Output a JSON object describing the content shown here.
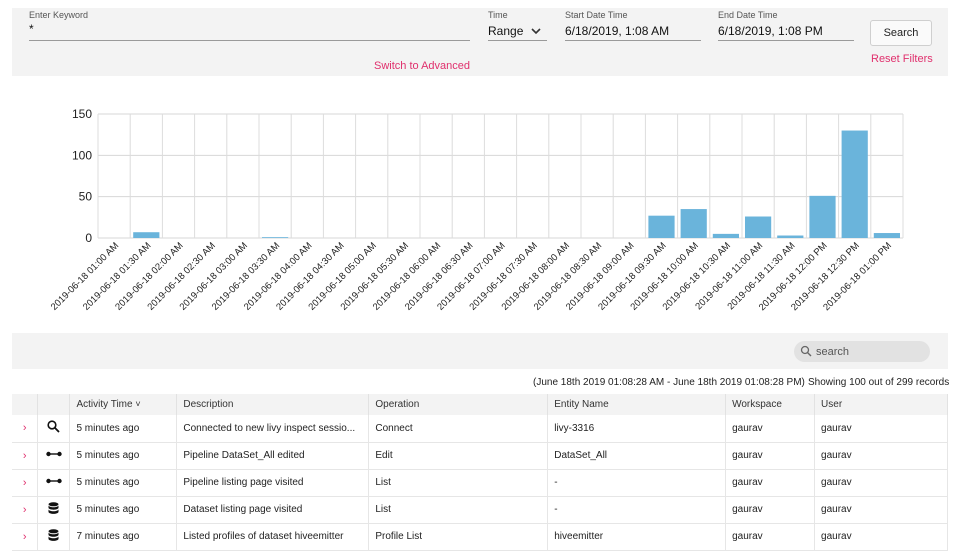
{
  "filters": {
    "keyword_label": "Enter Keyword",
    "keyword_value": "*",
    "time_label": "Time",
    "time_value": "Range",
    "start_label": "Start Date Time",
    "start_value": "6/18/2019, 1:08 AM",
    "end_label": "End Date Time",
    "end_value": "6/18/2019, 1:08 PM",
    "search_button": "Search",
    "reset_link": "Reset Filters",
    "advanced_link": "Switch to Advanced"
  },
  "chart_data": {
    "type": "bar",
    "categories": [
      "2019-06-18 01:00 AM",
      "2019-06-18 01:30 AM",
      "2019-06-18 02:00 AM",
      "2019-06-18 02:30 AM",
      "2019-06-18 03:00 AM",
      "2019-06-18 03:30 AM",
      "2019-06-18 04:00 AM",
      "2019-06-18 04:30 AM",
      "2019-06-18 05:00 AM",
      "2019-06-18 05:30 AM",
      "2019-06-18 06:00 AM",
      "2019-06-18 06:30 AM",
      "2019-06-18 07:00 AM",
      "2019-06-18 07:30 AM",
      "2019-06-18 08:00 AM",
      "2019-06-18 08:30 AM",
      "2019-06-18 09:00 AM",
      "2019-06-18 09:30 AM",
      "2019-06-18 10:00 AM",
      "2019-06-18 10:30 AM",
      "2019-06-18 11:00 AM",
      "2019-06-18 11:30 AM",
      "2019-06-18 12:00 PM",
      "2019-06-18 12:30 PM",
      "2019-06-18 01:00 PM"
    ],
    "values": [
      0,
      7,
      0,
      0,
      0,
      1,
      0,
      0,
      0,
      0,
      0,
      0,
      0,
      0,
      0,
      0,
      0,
      27,
      35,
      5,
      26,
      3,
      51,
      130,
      6
    ],
    "yticks": [
      0,
      50,
      100,
      150
    ],
    "ylim": [
      0,
      150
    ],
    "grid": true,
    "bar_color": "#6ab4db"
  },
  "toolbar": {
    "search_placeholder": "search"
  },
  "records": {
    "range_text": "(June 18th 2019 01:08:28 AM - June 18th 2019 01:08:28 PM)",
    "showing_text": "Showing 100 out of 299 records"
  },
  "table": {
    "headers": [
      "Activity Time",
      "Description",
      "Operation",
      "Entity Name",
      "Workspace",
      "User"
    ],
    "sort_indicator": "˅",
    "rows": [
      {
        "icon": "search",
        "time": "5 minutes ago",
        "desc": "Connected to new livy inspect sessio...",
        "op": "Connect",
        "entity": "livy-3316",
        "ws": "gaurav",
        "user": "gaurav"
      },
      {
        "icon": "pipeline",
        "time": "5 minutes ago",
        "desc": "Pipeline DataSet_All edited",
        "op": "Edit",
        "entity": "DataSet_All",
        "ws": "gaurav",
        "user": "gaurav"
      },
      {
        "icon": "pipeline",
        "time": "5 minutes ago",
        "desc": "Pipeline listing page visited",
        "op": "List",
        "entity": "-",
        "ws": "gaurav",
        "user": "gaurav"
      },
      {
        "icon": "database",
        "time": "5 minutes ago",
        "desc": "Dataset listing page visited",
        "op": "List",
        "entity": "-",
        "ws": "gaurav",
        "user": "gaurav"
      },
      {
        "icon": "database",
        "time": "7 minutes ago",
        "desc": "Listed profiles of dataset hiveemitter",
        "op": "Profile List",
        "entity": "hiveemitter",
        "ws": "gaurav",
        "user": "gaurav"
      }
    ]
  }
}
